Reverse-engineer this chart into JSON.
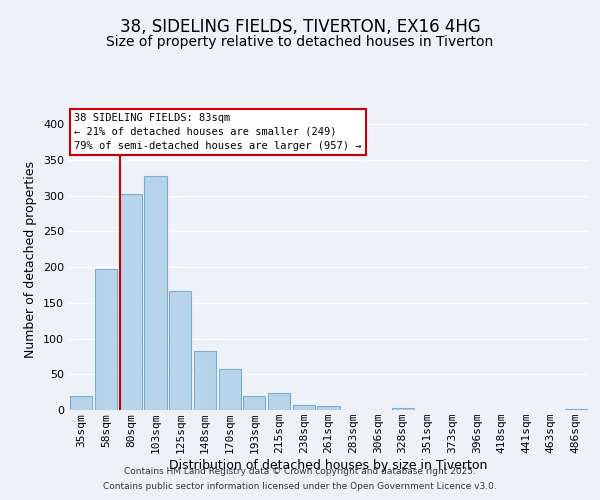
{
  "title": "38, SIDELING FIELDS, TIVERTON, EX16 4HG",
  "subtitle": "Size of property relative to detached houses in Tiverton",
  "xlabel": "Distribution of detached houses by size in Tiverton",
  "ylabel": "Number of detached properties",
  "bar_labels": [
    "35sqm",
    "58sqm",
    "80sqm",
    "103sqm",
    "125sqm",
    "148sqm",
    "170sqm",
    "193sqm",
    "215sqm",
    "238sqm",
    "261sqm",
    "283sqm",
    "306sqm",
    "328sqm",
    "351sqm",
    "373sqm",
    "396sqm",
    "418sqm",
    "441sqm",
    "463sqm",
    "486sqm"
  ],
  "bar_values": [
    20,
    197,
    303,
    328,
    167,
    82,
    57,
    19,
    24,
    7,
    6,
    0,
    0,
    3,
    0,
    0,
    0,
    0,
    0,
    0,
    1
  ],
  "bar_color": "#b8d4eb",
  "bar_edge_color": "#7aaecf",
  "ylim": [
    0,
    420
  ],
  "yticks": [
    0,
    50,
    100,
    150,
    200,
    250,
    300,
    350,
    400
  ],
  "vline_color": "#cc0000",
  "annotation_title": "38 SIDELING FIELDS: 83sqm",
  "annotation_line1": "← 21% of detached houses are smaller (249)",
  "annotation_line2": "79% of semi-detached houses are larger (957) →",
  "annotation_box_color": "#cc0000",
  "footer_line1": "Contains HM Land Registry data © Crown copyright and database right 2025.",
  "footer_line2": "Contains public sector information licensed under the Open Government Licence v3.0.",
  "background_color": "#eef2f8",
  "grid_color": "#ffffff",
  "title_fontsize": 12,
  "subtitle_fontsize": 10,
  "axis_label_fontsize": 9,
  "tick_fontsize": 8,
  "footer_fontsize": 6.5
}
